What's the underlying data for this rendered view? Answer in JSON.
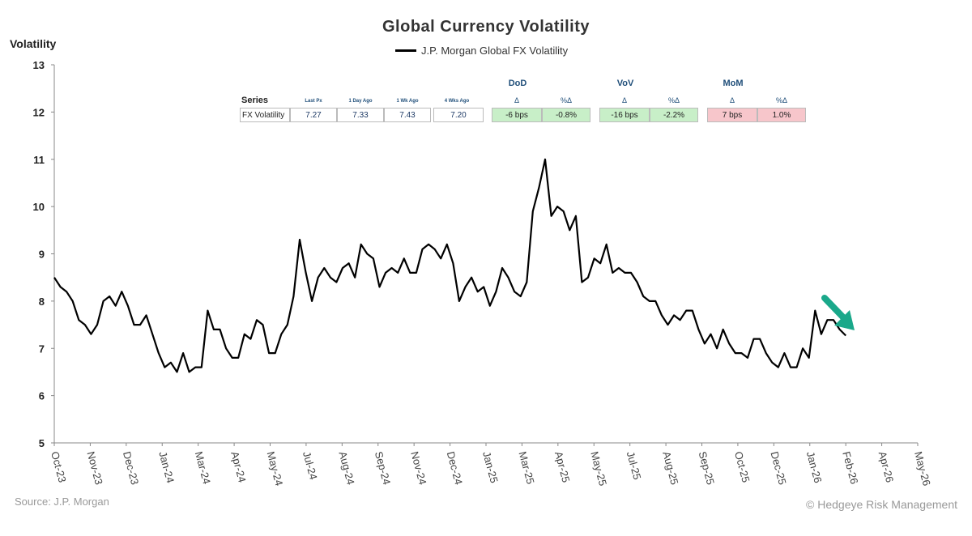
{
  "chart_data": {
    "type": "line",
    "title": "Global Currency Volatility",
    "ylabel": "Volatility",
    "xlabel": "",
    "ylim": [
      5,
      13
    ],
    "yticks": [
      5,
      6,
      7,
      8,
      9,
      10,
      11,
      12,
      13
    ],
    "xticks": [
      "Oct-23",
      "Nov-23",
      "Dec-23",
      "Jan-24",
      "Mar-24",
      "Apr-24",
      "May-24",
      "Jul-24",
      "Aug-24",
      "Sep-24",
      "Nov-24",
      "Dec-24",
      "Jan-25",
      "Mar-25",
      "Apr-25",
      "May-25",
      "Jul-25",
      "Aug-25",
      "Sep-25",
      "Oct-25",
      "Dec-25",
      "Jan-26",
      "Feb-26",
      "Apr-26",
      "May-26"
    ],
    "grid": false,
    "legend_placement": "top-center",
    "series": [
      {
        "name": "J.P. Morgan Global FX Volatility",
        "color": "#000000",
        "start": "Oct-23",
        "end": "Feb-26",
        "values": [
          8.5,
          8.3,
          8.2,
          8.0,
          7.6,
          7.5,
          7.3,
          7.5,
          8.0,
          8.1,
          7.9,
          8.2,
          7.9,
          7.5,
          7.5,
          7.7,
          7.3,
          6.9,
          6.6,
          6.7,
          6.5,
          6.9,
          6.5,
          6.6,
          6.6,
          7.8,
          7.4,
          7.4,
          7.0,
          6.8,
          6.8,
          7.3,
          7.2,
          7.6,
          7.5,
          6.9,
          6.9,
          7.3,
          7.5,
          8.1,
          9.3,
          8.6,
          8.0,
          8.5,
          8.7,
          8.5,
          8.4,
          8.7,
          8.8,
          8.5,
          9.2,
          9.0,
          8.9,
          8.3,
          8.6,
          8.7,
          8.6,
          8.9,
          8.6,
          8.6,
          9.1,
          9.2,
          9.1,
          8.9,
          9.2,
          8.8,
          8.0,
          8.3,
          8.5,
          8.2,
          8.3,
          7.9,
          8.2,
          8.7,
          8.5,
          8.2,
          8.1,
          8.4,
          9.9,
          10.4,
          11.0,
          9.8,
          10.0,
          9.9,
          9.5,
          9.8,
          8.4,
          8.5,
          8.9,
          8.8,
          9.2,
          8.6,
          8.7,
          8.6,
          8.6,
          8.4,
          8.1,
          8.0,
          8.0,
          7.7,
          7.5,
          7.7,
          7.6,
          7.8,
          7.8,
          7.4,
          7.1,
          7.3,
          7.0,
          7.4,
          7.1,
          6.9,
          6.9,
          6.8,
          7.2,
          7.2,
          6.9,
          6.7,
          6.6,
          6.9,
          6.6,
          6.6,
          7.0,
          6.8,
          7.8,
          7.3,
          7.6,
          7.6,
          7.4,
          7.27
        ]
      }
    ],
    "annotation": {
      "type": "arrow",
      "direction": "down-right",
      "color": "#1aa88a"
    }
  },
  "table": {
    "series_header": "Series",
    "columns": [
      "Last Px",
      "1 Day Ago",
      "1 Wk Ago",
      "4 Wks Ago"
    ],
    "row_label": "FX Volatility",
    "values": [
      "7.27",
      "7.33",
      "7.43",
      "7.20"
    ],
    "groups": [
      {
        "name": "DoD",
        "h1": "Δ",
        "h2": "%Δ",
        "v1": "-6 bps",
        "v2": "-0.8%",
        "status": "green"
      },
      {
        "name": "VoV",
        "h1": "Δ",
        "h2": "%Δ",
        "v1": "-16 bps",
        "v2": "-2.2%",
        "status": "green"
      },
      {
        "name": "MoM",
        "h1": "Δ",
        "h2": "%Δ",
        "v1": "7 bps",
        "v2": "1.0%",
        "status": "red"
      }
    ]
  },
  "footer": {
    "source": "Source: J.P. Morgan",
    "credit": "© Hedgeye Risk Management"
  }
}
